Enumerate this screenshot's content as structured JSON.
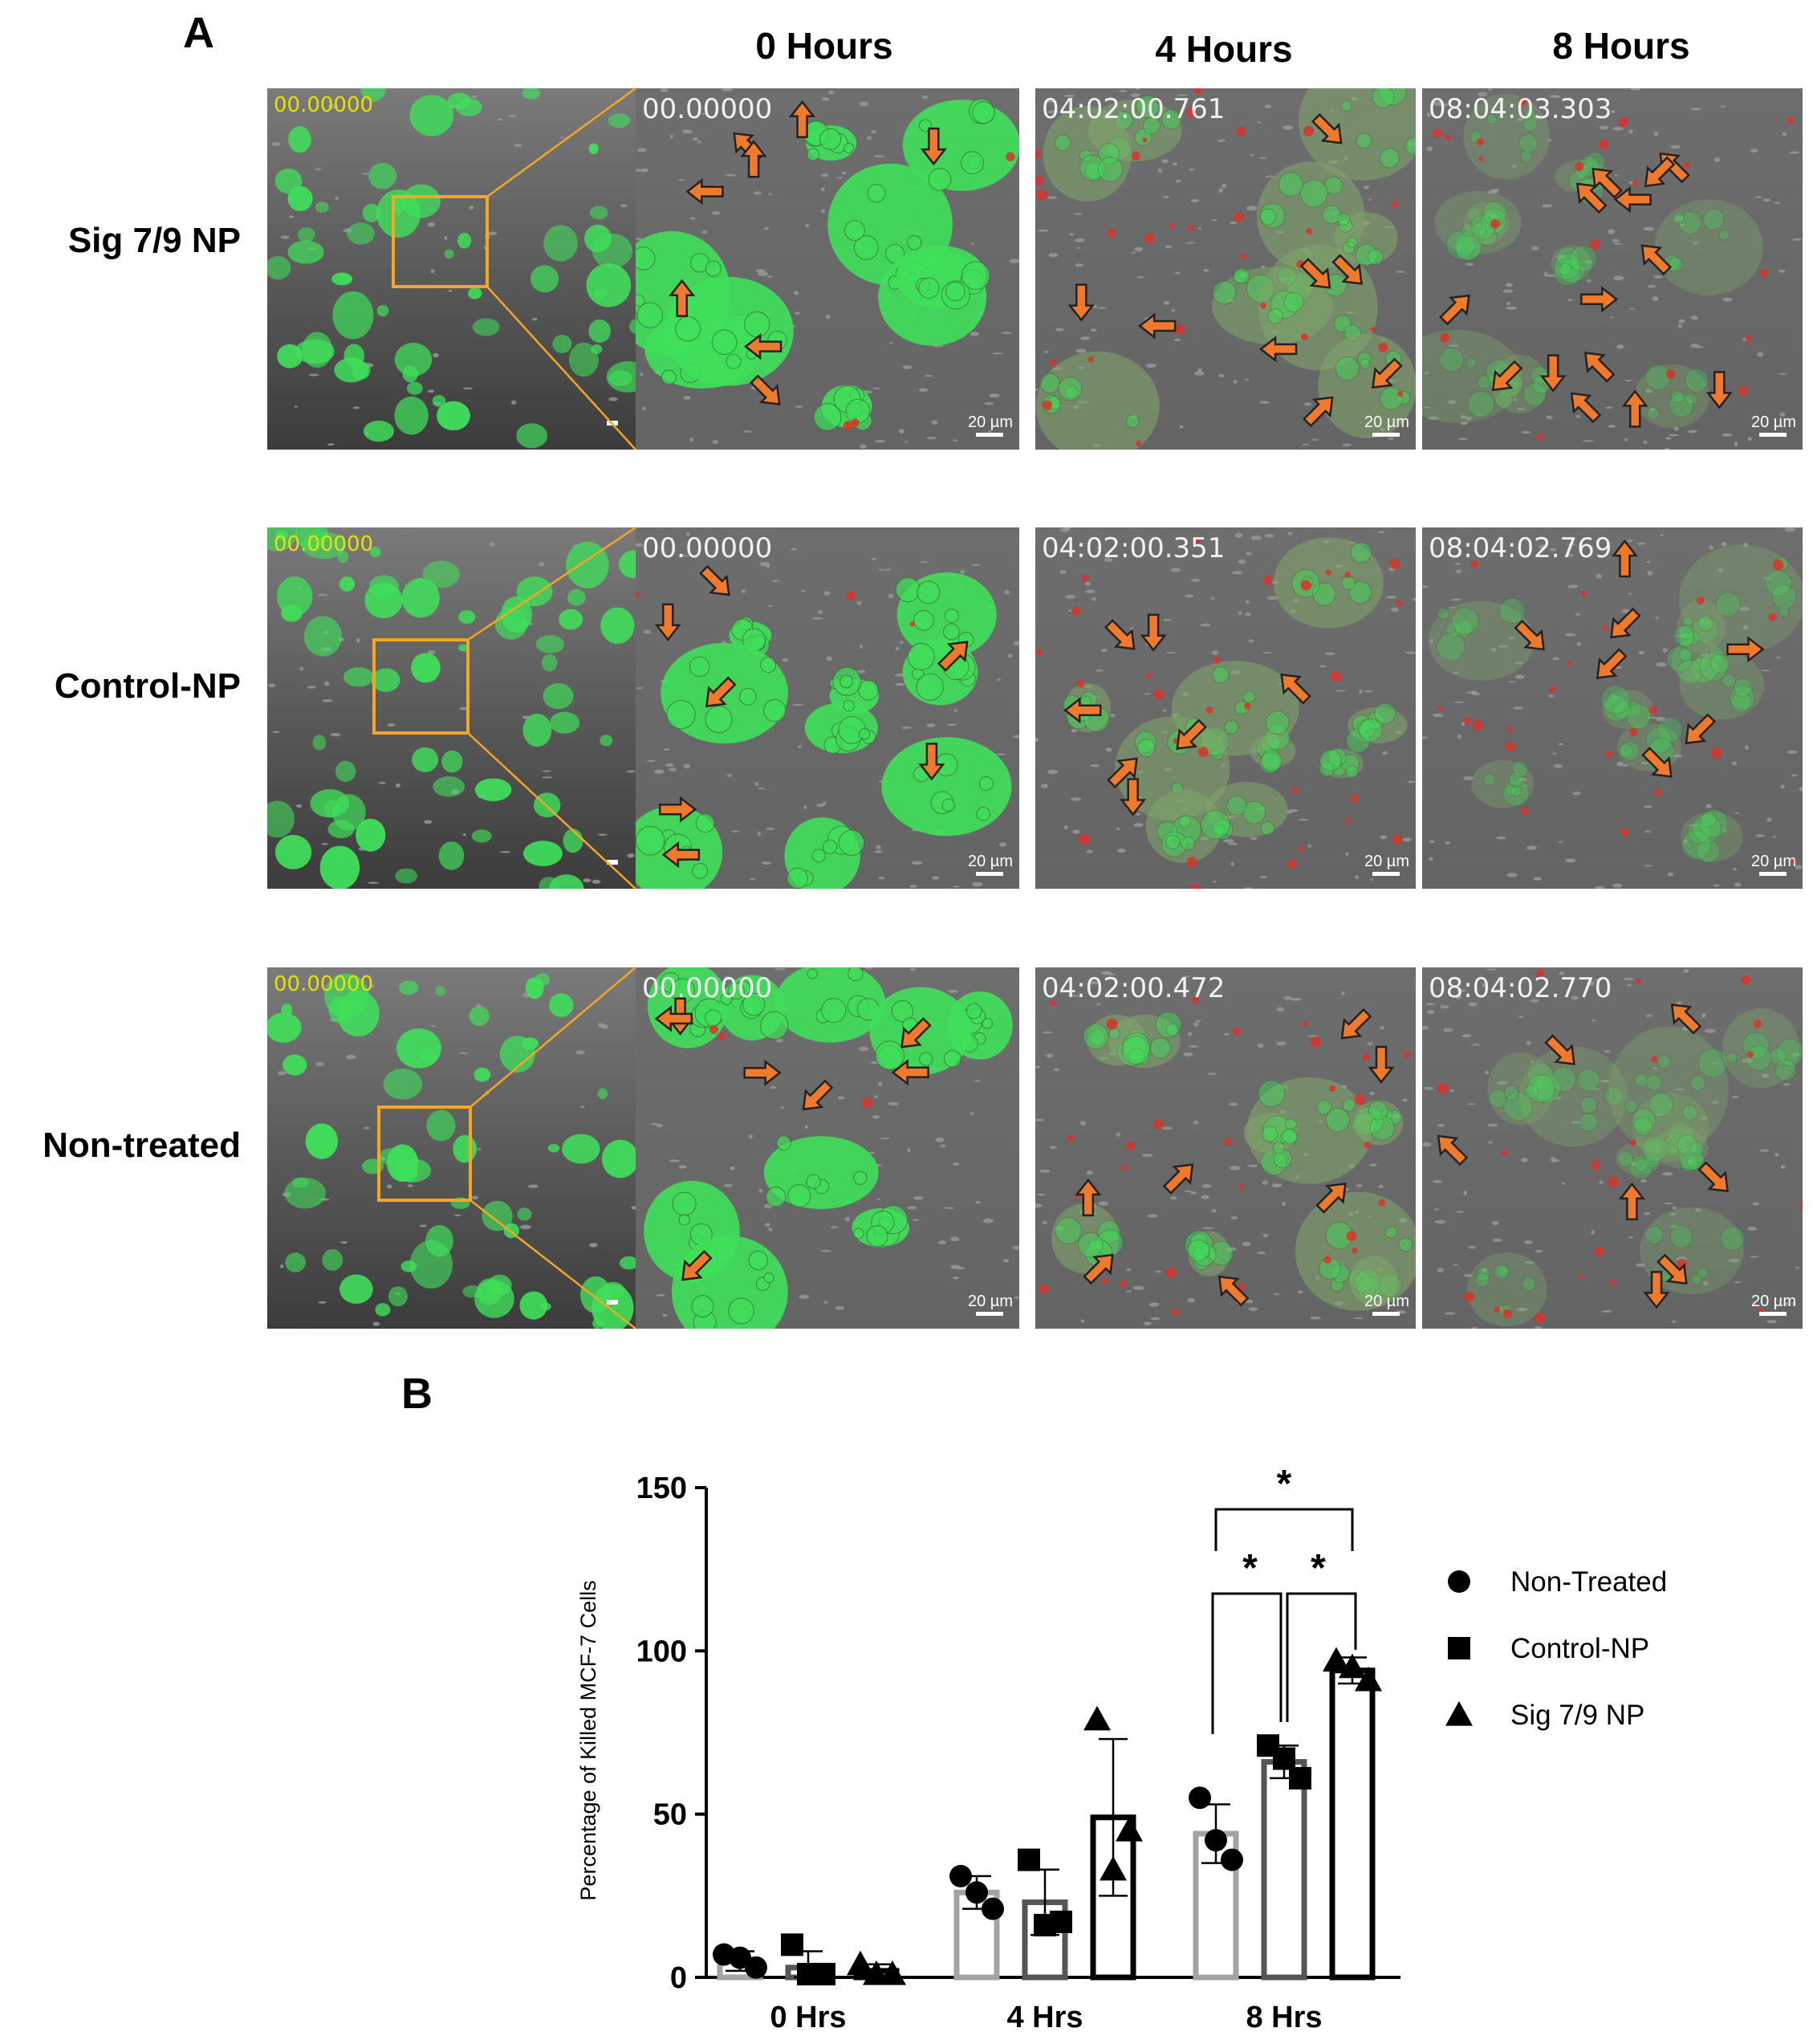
{
  "panel_a": {
    "letter": "A",
    "columns": [
      "0 Hours",
      "4 Hours",
      "8 Hours"
    ],
    "rows": [
      {
        "label": "Sig 7/9 NP",
        "overview_ts": "00.00000",
        "timestamps": [
          "00.00000",
          "04:02:00.761",
          "08:04:03.303"
        ]
      },
      {
        "label": "Control-NP",
        "overview_ts": "00.00000",
        "timestamps": [
          "00.00000",
          "04:02:00.351",
          "08:04:02.769"
        ]
      },
      {
        "label": "Non-treated",
        "overview_ts": "00.00000",
        "timestamps": [
          "00.00000",
          "04:02:00.472",
          "08:04:02.770"
        ]
      }
    ],
    "scale_bar": "20 µm",
    "colors": {
      "fluorescence": "#3fe05a",
      "dead_cells": "#d9332a",
      "arrow": "#f07a2c",
      "zoom_box": "#f5a623",
      "background": "#6a6a6a"
    }
  },
  "panel_b": {
    "letter": "B",
    "chart_data": {
      "type": "bar",
      "title": "",
      "xlabel": "",
      "ylabel": "Percentage of Killed MCF-7 Cells",
      "ylim": [
        0,
        150
      ],
      "yticks": [
        "0",
        "50",
        "100",
        "150"
      ],
      "categories": [
        "0 Hrs",
        "4 Hrs",
        "8 Hrs"
      ],
      "series": [
        {
          "name": "Non-Treated",
          "marker": "circle",
          "color": "#a3a3a3",
          "values": [
            5,
            26,
            44
          ],
          "errors": [
            3,
            5,
            9
          ],
          "points": [
            [
              7,
              3,
              6
            ],
            [
              31,
              21,
              26
            ],
            [
              55,
              36,
              42
            ]
          ]
        },
        {
          "name": "Control-NP",
          "marker": "square",
          "color": "#555555",
          "values": [
            3,
            23,
            66
          ],
          "errors": [
            5,
            10,
            5
          ],
          "points": [
            [
              10,
              1,
              1
            ],
            [
              36,
              17,
              16
            ],
            [
              71,
              61,
              67
            ]
          ]
        },
        {
          "name": "Sig 7/9 NP",
          "marker": "triangle",
          "color": "#000000",
          "values": [
            2,
            49,
            94
          ],
          "errors": [
            2,
            24,
            4
          ],
          "points": [
            [
              4,
              1,
              1
            ],
            [
              79,
              45,
              33
            ],
            [
              97,
              91,
              95
            ]
          ]
        }
      ],
      "significance": [
        {
          "from": "Non-Treated",
          "to": "Sig 7/9 NP",
          "category": "8 Hrs",
          "label": "*"
        },
        {
          "from": "Non-Treated",
          "to": "Control-NP",
          "category": "8 Hrs",
          "label": "*"
        },
        {
          "from": "Control-NP",
          "to": "Sig 7/9 NP",
          "category": "8 Hrs",
          "label": "*"
        }
      ],
      "legend_position": "right"
    }
  }
}
